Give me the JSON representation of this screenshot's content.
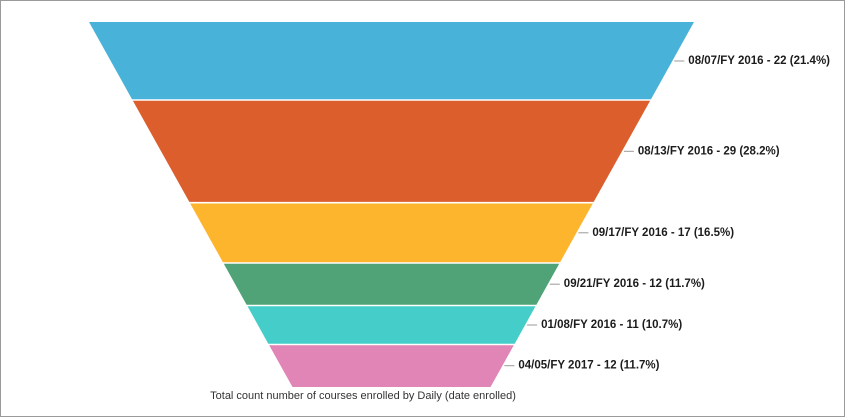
{
  "chart_data": {
    "type": "funnel",
    "title": "Total count number of courses enrolled by Daily (date enrolled)",
    "categories": [
      "08/07/FY 2016",
      "08/13/FY 2016",
      "09/17/FY 2016",
      "09/21/FY 2016",
      "01/08/FY 2016",
      "04/05/FY 2017"
    ],
    "values": [
      22,
      29,
      17,
      12,
      11,
      12
    ],
    "percentages": [
      "21.4%",
      "28.2%",
      "16.5%",
      "11.7%",
      "10.7%",
      "11.7%"
    ],
    "labels": [
      "08/07/FY 2016 - 22 (21.4%)",
      "08/13/FY 2016 - 29 (28.2%)",
      "09/17/FY 2016 - 17 (16.5%)",
      "09/21/FY 2016 - 12 (11.7%)",
      "01/08/FY 2016 - 11 (10.7%)",
      "04/05/FY 2017 - 12 (11.7%)"
    ],
    "colors": [
      "#49B2D8",
      "#DB5E2C",
      "#FDB52D",
      "#4FA376",
      "#45CDC9",
      "#E184B6"
    ],
    "label_color": "#1c1c1c",
    "leader_line_color": "#999999",
    "background": "#ffffff",
    "border_color": "#9a9a9a",
    "layout": {
      "orientation": "inverted-trapezoid",
      "labels_position": "right",
      "segment_heights": "proportional-to-values",
      "segment_gap_color": "#ffffff",
      "legend": "none",
      "grid": "off"
    }
  }
}
